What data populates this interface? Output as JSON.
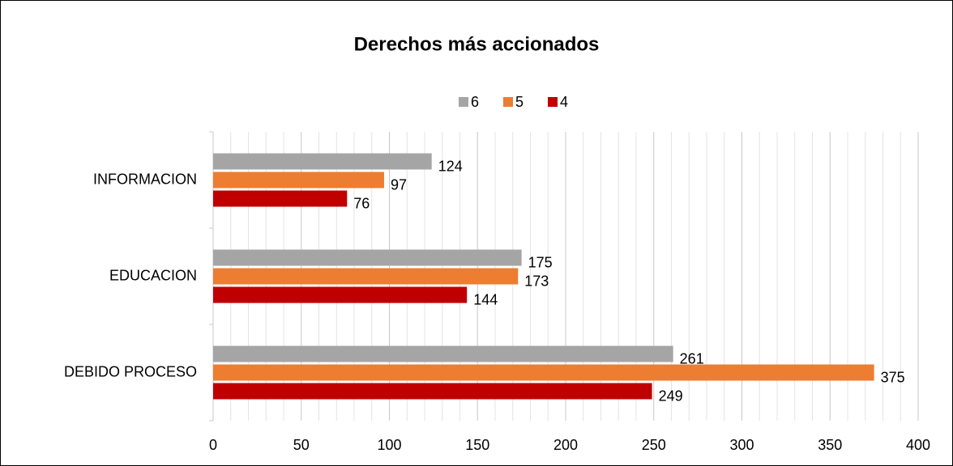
{
  "chart_data": {
    "type": "hbar",
    "title": "Derechos más accionados",
    "categories": [
      "INFORMACION",
      "EDUCACION",
      "DEBIDO PROCESO"
    ],
    "series": [
      {
        "name": "6",
        "color": "#a5a5a5",
        "values": [
          124,
          175,
          261
        ]
      },
      {
        "name": "5",
        "color": "#ed7d31",
        "values": [
          97,
          173,
          375
        ]
      },
      {
        "name": "4",
        "color": "#c00000",
        "values": [
          76,
          144,
          249
        ]
      }
    ],
    "xlim": [
      0,
      400
    ],
    "xticks": [
      0,
      50,
      100,
      150,
      200,
      250,
      300,
      350,
      400
    ],
    "grid": true,
    "minor_grid": true,
    "legend": "top"
  }
}
